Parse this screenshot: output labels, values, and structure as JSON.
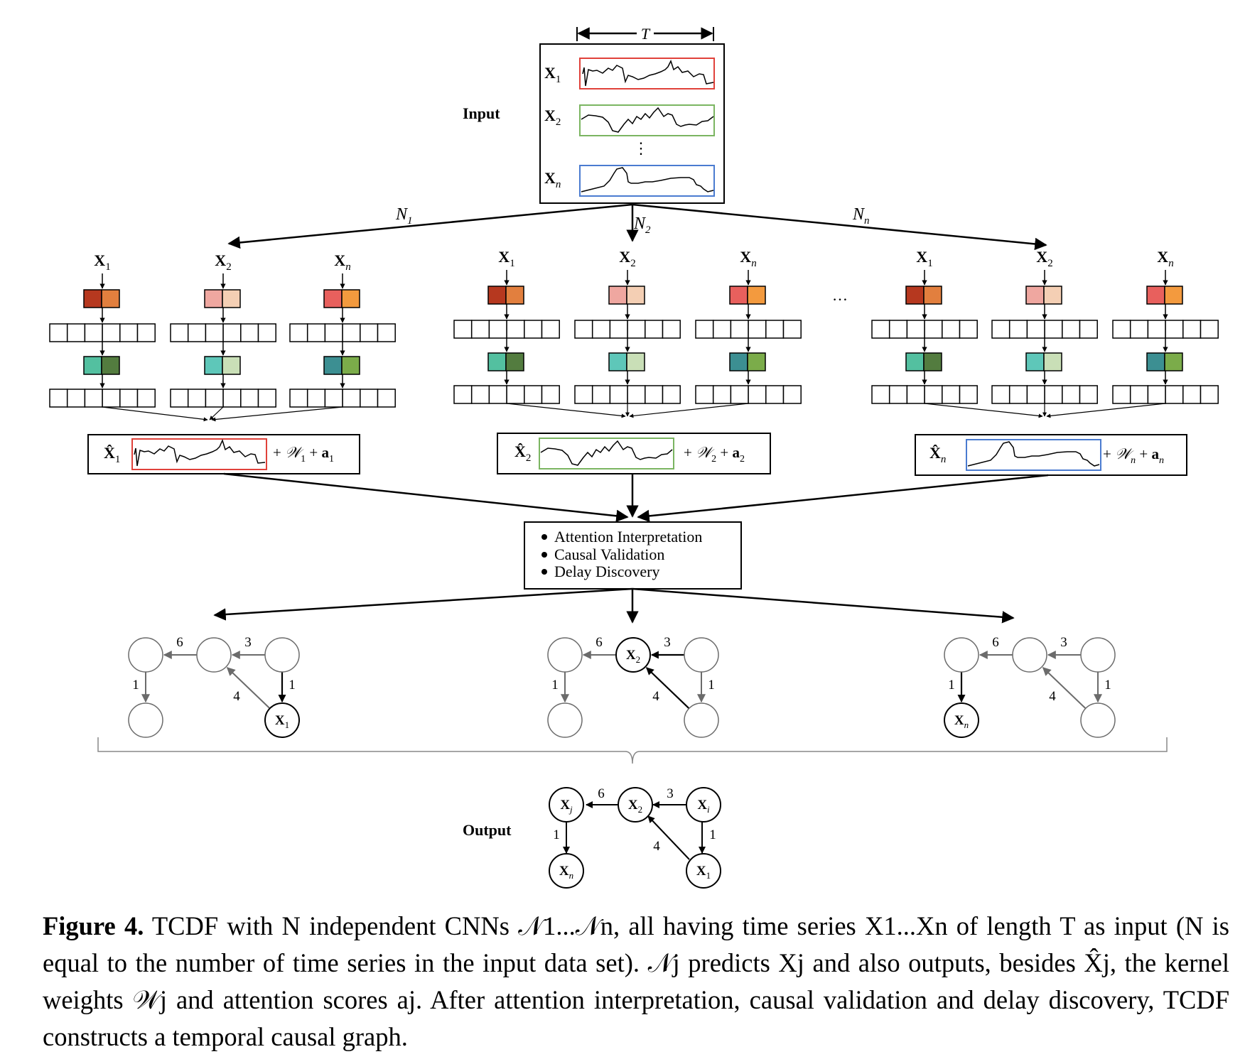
{
  "input": {
    "label": "Input",
    "length_symbol": "T",
    "rows": [
      {
        "name": "X",
        "sub": "1",
        "color": "#e0413a"
      },
      {
        "name": "X",
        "sub": "2",
        "color": "#7bb561"
      },
      {
        "name": "X",
        "sub": "n",
        "color": "#4a7bd0"
      }
    ],
    "vdots": "⋮"
  },
  "networks": [
    {
      "name": "N",
      "sub": "1"
    },
    {
      "name": "N",
      "sub": "2"
    },
    {
      "name": "N",
      "sub": "n"
    }
  ],
  "columns": [
    {
      "name": "X",
      "sub": "1"
    },
    {
      "name": "X",
      "sub": "2"
    },
    {
      "name": "X",
      "sub": "n"
    }
  ],
  "kernel_colors": {
    "layer1": [
      [
        "#b6381f",
        "#e27f3e"
      ],
      [
        "#efa7a0",
        "#f4cfb4"
      ],
      [
        "#e8605d",
        "#f39a3e"
      ]
    ],
    "layer2": [
      [
        "#53c0a0",
        "#537c3f"
      ],
      [
        "#5ec7b9",
        "#c9dfb7"
      ],
      [
        "#3c8f92",
        "#7bac4a"
      ]
    ]
  },
  "ellipsis": "…",
  "predictions": [
    {
      "name": "X̂",
      "sub": "1",
      "weights": "𝒲",
      "wsub": "1",
      "attn": "a",
      "asub": "1",
      "color": "#e0413a"
    },
    {
      "name": "X̂",
      "sub": "2",
      "weights": "𝒲",
      "wsub": "2",
      "attn": "a",
      "asub": "2",
      "color": "#7bb561"
    },
    {
      "name": "X̂",
      "sub": "n",
      "weights": "𝒲",
      "wsub": "n",
      "attn": "a",
      "asub": "n",
      "color": "#4a7bd0"
    }
  ],
  "plus": "+",
  "interpretation": {
    "items": [
      "Attention Interpretation",
      "Causal Validation",
      "Delay Discovery"
    ]
  },
  "graph_edge_labels": [
    "6",
    "3",
    "1",
    "1",
    "4"
  ],
  "graph_targets": [
    {
      "name": "X",
      "sub": "1"
    },
    {
      "name": "X",
      "sub": "2"
    },
    {
      "name": "X",
      "sub": "n"
    }
  ],
  "output": {
    "label": "Output",
    "nodes": [
      {
        "name": "X",
        "sub": "j"
      },
      {
        "name": "X",
        "sub": "2"
      },
      {
        "name": "X",
        "sub": "i"
      },
      {
        "name": "X",
        "sub": "n"
      },
      {
        "name": "X",
        "sub": "1"
      }
    ],
    "edge_labels": [
      "6",
      "3",
      "1",
      "1",
      "4"
    ]
  },
  "caption": {
    "figure_label": "Figure 4.",
    "text": "TCDF with N independent CNNs 𝒩1...𝒩n, all having time series X1...Xn of length T as input (N is equal to the number of time series in the input data set). 𝒩j predicts Xj and also outputs, besides X̂j, the kernel weights 𝒲j and attention scores aj. After attention interpretation, causal validation and delay discovery, TCDF constructs a temporal causal graph."
  },
  "colors": {
    "red_series": "#e0413a",
    "green_series": "#7bb561",
    "blue_series": "#4a7bd0",
    "graph_gray": "#6b6b6b"
  }
}
